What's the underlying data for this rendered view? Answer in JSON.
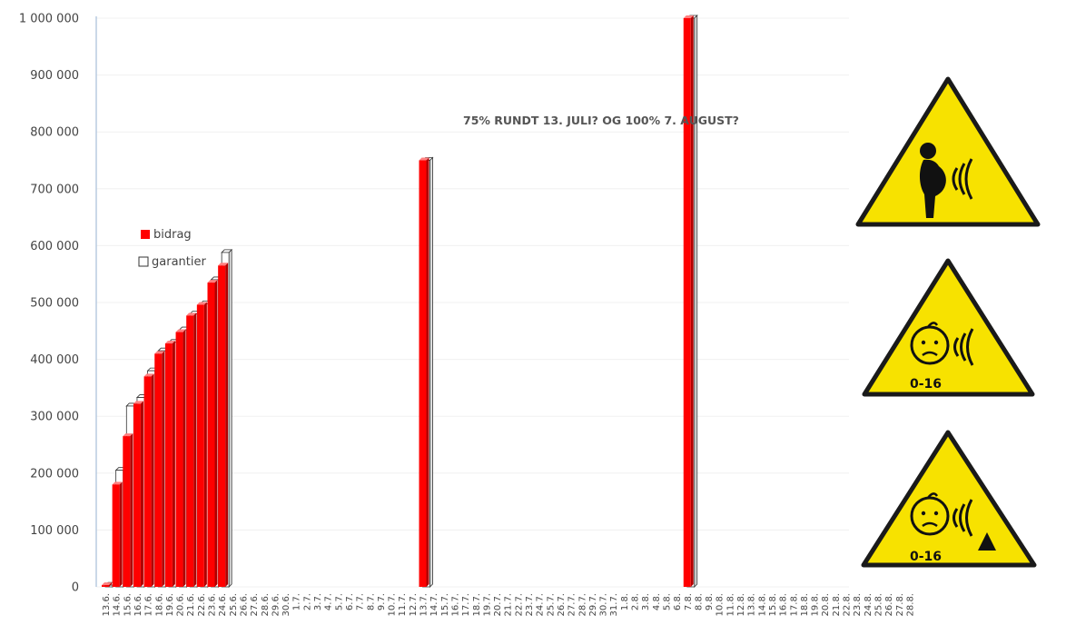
{
  "chart_data": {
    "type": "bar",
    "title": "",
    "xlabel": "",
    "ylabel": "",
    "annotation": "75% RUNDT 13. JULI? OG 100% 7. AUGUST?",
    "ylim": [
      0,
      1000000
    ],
    "yticks": [
      0,
      100000,
      200000,
      300000,
      400000,
      500000,
      600000,
      700000,
      800000,
      900000,
      1000000
    ],
    "ytick_labels": [
      "0",
      "100 000",
      "200 000",
      "300 000",
      "400 000",
      "500 000",
      "600 000",
      "700 000",
      "800 000",
      "900 000",
      "1 000 000"
    ],
    "grid": true,
    "legend_position": "left",
    "categories": [
      "13.6.",
      "14.6.",
      "15.6.",
      "16.6.",
      "17.6.",
      "18.6.",
      "19.6.",
      "20.6.",
      "21.6.",
      "22.6.",
      "23.6.",
      "24.6.",
      "25.6.",
      "26.6.",
      "27.6.",
      "28.6.",
      "29.6.",
      "30.6.",
      "1.7.",
      "2.7.",
      "3.7.",
      "4.7.",
      "5.7.",
      "6.7.",
      "7.7.",
      "8.7.",
      "9.7.",
      "10.7.",
      "11.7.",
      "12.7.",
      "13.7.",
      "14.7.",
      "15.7.",
      "16.7.",
      "17.7.",
      "18.7.",
      "19.7.",
      "20.7.",
      "21.7.",
      "22.7.",
      "23.7.",
      "24.7.",
      "25.7.",
      "26.7.",
      "27.7.",
      "28.7.",
      "29.7.",
      "30.7.",
      "31.7.",
      "1.8.",
      "2.8.",
      "3.8.",
      "4.8.",
      "5.8.",
      "6.8.",
      "7.8.",
      "8.8.",
      "9.8.",
      "10.8.",
      "11.8.",
      "12.8.",
      "13.8.",
      "14.8.",
      "15.8.",
      "16.8.",
      "17.8.",
      "18.8.",
      "19.8.",
      "20.8.",
      "21.8.",
      "22.8.",
      "23.8.",
      "24.8.",
      "25.8.",
      "26.8.",
      "27.8.",
      "28.8."
    ],
    "series": [
      {
        "name": "bidrag",
        "color": "#ff0000",
        "values": [
          3000,
          180000,
          265000,
          322000,
          370000,
          410000,
          428000,
          448000,
          477000,
          496000,
          535000,
          565000,
          null,
          null,
          null,
          null,
          null,
          null,
          null,
          null,
          null,
          null,
          null,
          null,
          null,
          null,
          null,
          null,
          null,
          null,
          750000,
          null,
          null,
          null,
          null,
          null,
          null,
          null,
          null,
          null,
          null,
          null,
          null,
          null,
          null,
          null,
          null,
          null,
          null,
          null,
          null,
          null,
          null,
          null,
          null,
          1000000,
          null,
          null,
          null,
          null,
          null,
          null,
          null,
          null,
          null,
          null,
          null,
          null,
          null,
          null,
          null,
          null,
          null,
          null,
          null,
          null,
          null
        ]
      },
      {
        "name": "garantier",
        "color": "#ffffff",
        "values": [
          3000,
          205000,
          318000,
          333000,
          380000,
          415000,
          430000,
          452000,
          480000,
          498000,
          540000,
          588000,
          null,
          null,
          null,
          null,
          null,
          null,
          null,
          null,
          null,
          null,
          null,
          null,
          null,
          null,
          null,
          null,
          null,
          null,
          750000,
          null,
          null,
          null,
          null,
          null,
          null,
          null,
          null,
          null,
          null,
          null,
          null,
          null,
          null,
          null,
          null,
          null,
          null,
          null,
          null,
          null,
          null,
          null,
          null,
          1000000,
          null,
          null,
          null,
          null,
          null,
          null,
          null,
          null,
          null,
          null,
          null,
          null,
          null,
          null,
          null,
          null,
          null,
          null,
          null,
          null,
          null
        ]
      }
    ]
  },
  "signs": [
    {
      "icon": "pregnant-woman-radiation-warning-icon",
      "label": ""
    },
    {
      "icon": "child-radiation-warning-icon",
      "label": "0-16"
    },
    {
      "icon": "child-radiation-hazard-warning-icon",
      "label": "0-16"
    }
  ],
  "colors": {
    "sign_fill": "#f7e200",
    "sign_border": "#1a1a1a",
    "grid": "#f0f0f0",
    "axis": "#b8cbe0"
  }
}
